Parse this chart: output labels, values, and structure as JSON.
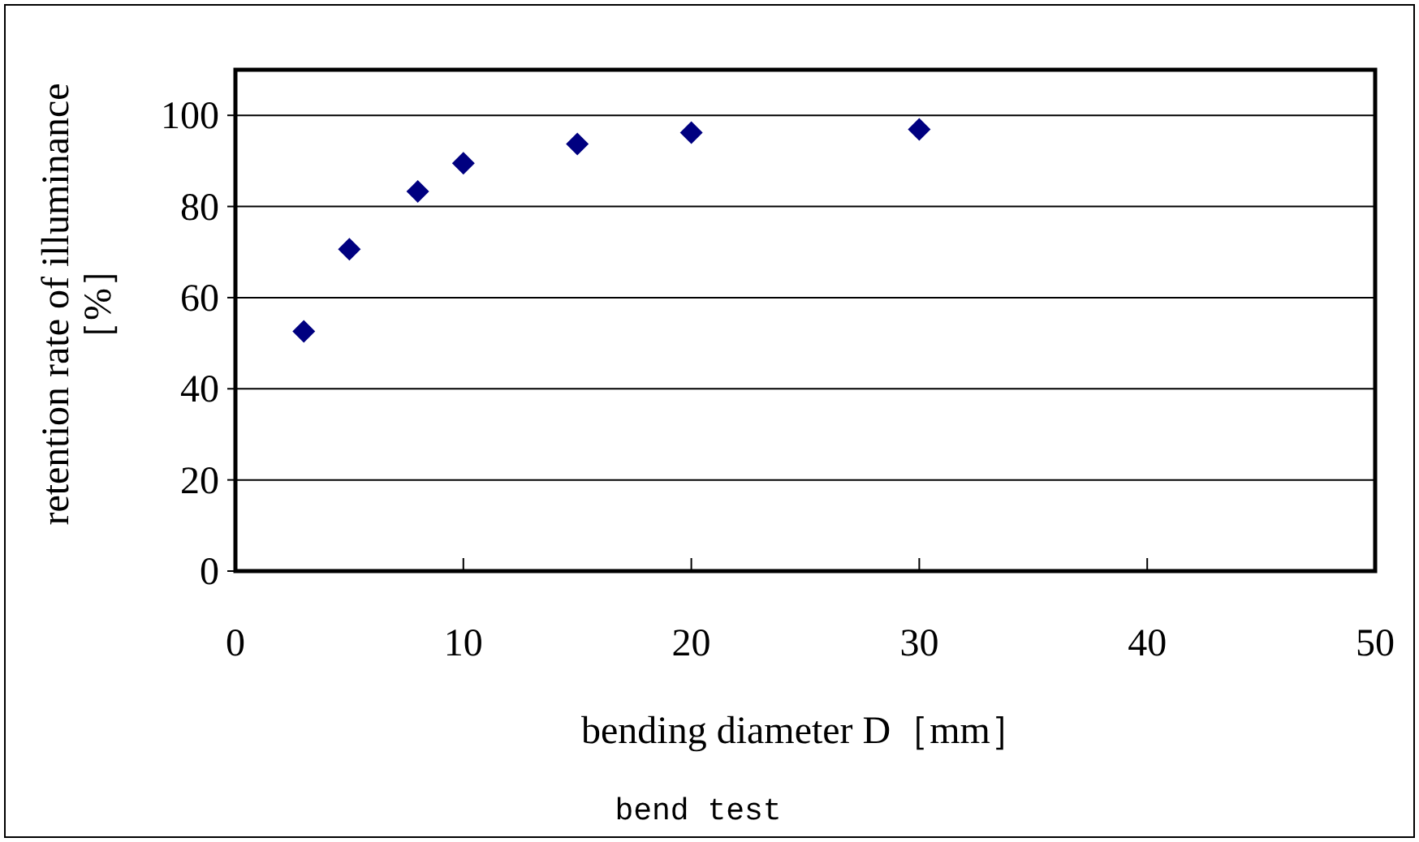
{
  "chart_data": {
    "type": "scatter",
    "x": [
      3,
      5,
      8,
      10,
      15,
      20,
      30
    ],
    "values": [
      52.6,
      70.6,
      83.3,
      89.5,
      93.7,
      96.2,
      96.9
    ],
    "color": "#000080",
    "marker": "diamond",
    "xlabel": "bending diameter D［mm］",
    "ylabel": "retention rate of illuminance\n［%］",
    "xlim": [
      0,
      50
    ],
    "xticks": [
      0,
      10,
      20,
      30,
      40,
      50
    ],
    "ylim": [
      0,
      110
    ],
    "yticks": [
      0,
      20,
      40,
      60,
      80,
      100
    ],
    "grid": "y",
    "annotations": [
      "bend test"
    ]
  }
}
